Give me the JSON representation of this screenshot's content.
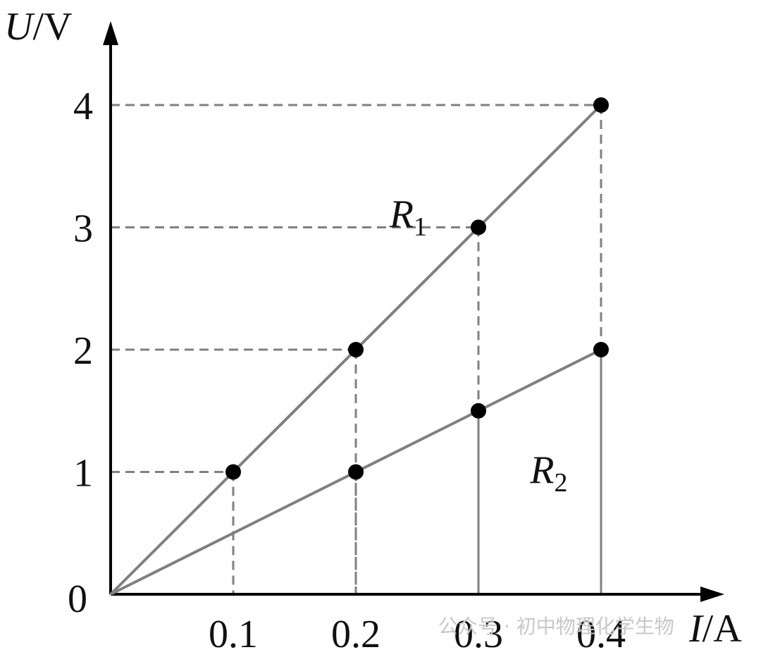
{
  "chart_data": {
    "type": "line",
    "xlabel": {
      "var": "I",
      "unit": "/A"
    },
    "ylabel": {
      "var": "U",
      "unit": "/V"
    },
    "xlim": [
      0,
      0.5
    ],
    "ylim": [
      0,
      5
    ],
    "x_ticks": [
      "0.1",
      "0.2",
      "0.3",
      "0.4"
    ],
    "y_ticks": [
      "1",
      "2",
      "3",
      "4"
    ],
    "origin_label": "0",
    "grid": "dashed guide lines from marked points to axes",
    "series": [
      {
        "name": "R",
        "subscript": "1",
        "x": [
          0,
          0.1,
          0.2,
          0.3,
          0.4
        ],
        "y": [
          0,
          1,
          2,
          3,
          4
        ],
        "marked_x": [
          0.1,
          0.2,
          0.3,
          0.4
        ],
        "label_at": [
          0.27,
          3.35
        ]
      },
      {
        "name": "R",
        "subscript": "2",
        "x": [
          0,
          0.2,
          0.3,
          0.4
        ],
        "y": [
          0,
          1,
          1.5,
          2
        ],
        "marked_x": [
          0.2,
          0.3,
          0.4
        ],
        "label_at": [
          0.345,
          1.2
        ]
      }
    ],
    "colors": {
      "line": "#808080",
      "dash": "#808080",
      "point": "#000000",
      "axis": "#000000"
    }
  },
  "watermark": "公众号 · 初中物理化学生物"
}
